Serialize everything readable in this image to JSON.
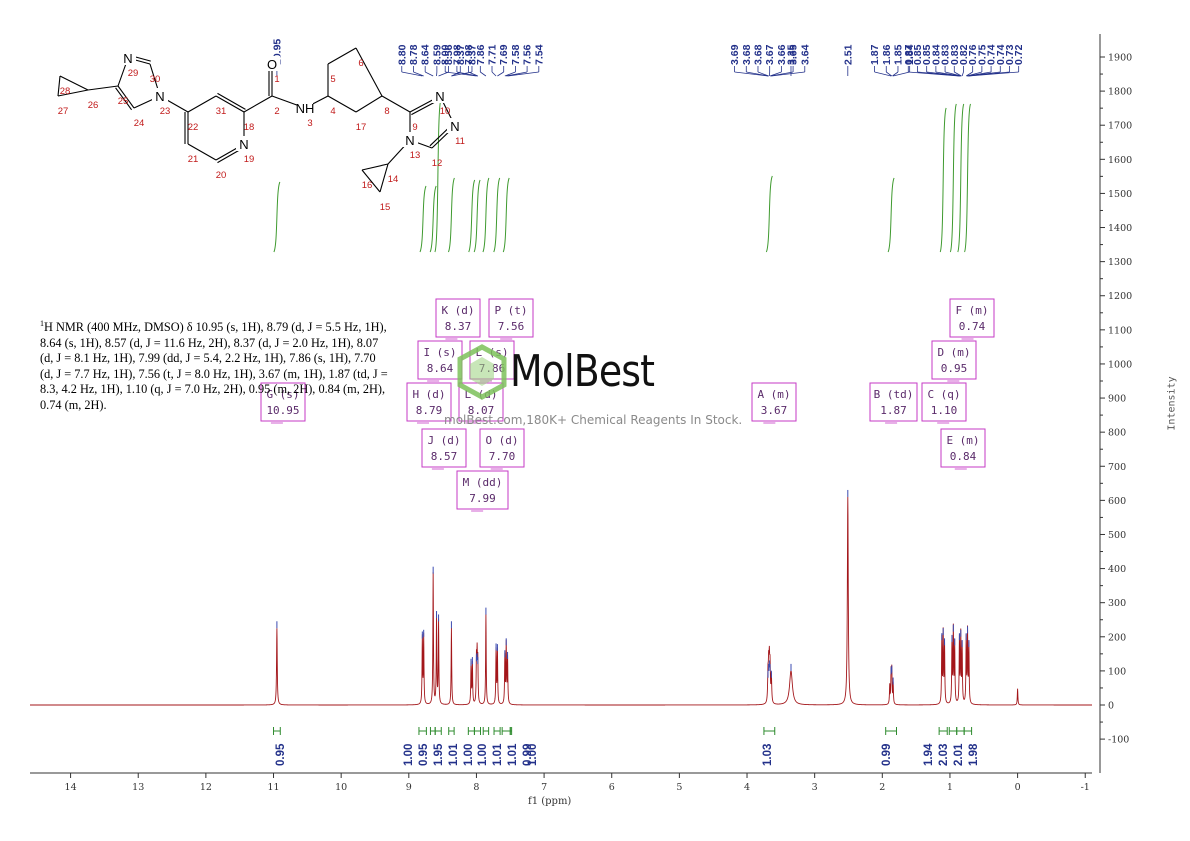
{
  "spectrum_text": {
    "nucleus_sup": "1",
    "body": "H NMR (400 MHz, DMSO) δ 10.95 (s, 1H), 8.79 (d, J = 5.5 Hz, 1H), 8.64 (s, 1H), 8.57 (d, J = 11.6 Hz, 2H), 8.37 (d, J = 2.0 Hz, 1H), 8.07 (d, J = 8.1 Hz, 1H), 7.99 (dd, J = 5.4, 2.2 Hz, 1H), 7.86 (s, 1H), 7.70 (d, J = 7.7 Hz, 1H), 7.56 (t, J = 8.0 Hz, 1H), 3.67 (m, 1H), 1.87 (td, J = 8.3, 4.2 Hz, 1H), 1.10 (q, J = 7.0 Hz, 2H), 0.95 (m, 2H), 0.84 (m, 2H), 0.74 (m, 2H)."
  },
  "watermark": {
    "brand": "MolBest",
    "url": "molBest.com,180K+ Chemical Reagents In Stock."
  },
  "axes": {
    "x_label": "f1 (ppm)",
    "y_label": "Intensity"
  },
  "molecule": {
    "atoms": [
      {
        "label": "O",
        "num": "1"
      },
      {
        "label": "",
        "num": "2"
      },
      {
        "label": "NH",
        "num": "3"
      },
      {
        "label": "",
        "num": "4"
      },
      {
        "label": "",
        "num": "5"
      },
      {
        "label": "",
        "num": "6"
      },
      {
        "label": "",
        "num": "17"
      },
      {
        "label": "",
        "num": "8"
      },
      {
        "label": "",
        "num": "9"
      },
      {
        "label": "N",
        "num": "10"
      },
      {
        "label": "N",
        "num": "11"
      },
      {
        "label": "",
        "num": "12"
      },
      {
        "label": "N",
        "num": "13"
      },
      {
        "label": "",
        "num": "14"
      },
      {
        "label": "",
        "num": "15"
      },
      {
        "label": "",
        "num": "16"
      },
      {
        "label": "",
        "num": "18"
      },
      {
        "label": "N",
        "num": "19"
      },
      {
        "label": "",
        "num": "20"
      },
      {
        "label": "",
        "num": "21"
      },
      {
        "label": "",
        "num": "22"
      },
      {
        "label": "N",
        "num": "23"
      },
      {
        "label": "",
        "num": "24"
      },
      {
        "label": "",
        "num": "25"
      },
      {
        "label": "",
        "num": "26"
      },
      {
        "label": "",
        "num": "27"
      },
      {
        "label": "",
        "num": "28"
      },
      {
        "label": "N",
        "num": "29"
      },
      {
        "label": "",
        "num": "30"
      },
      {
        "label": "",
        "num": "31"
      }
    ]
  },
  "chart_data": {
    "type": "line",
    "xlabel": "f1 (ppm)",
    "ylabel": "Intensity",
    "xlim": [
      14.6,
      -1.1
    ],
    "ylim": [
      -190,
      1990
    ],
    "x_ticks": [
      14,
      13,
      12,
      11,
      10,
      9,
      8,
      7,
      6,
      5,
      4,
      3,
      2,
      1,
      0,
      -1
    ],
    "y_ticks": [
      -100,
      0,
      100,
      200,
      300,
      400,
      500,
      600,
      700,
      800,
      900,
      1000,
      1100,
      1200,
      1300,
      1400,
      1500,
      1600,
      1700,
      1800,
      1900
    ],
    "peaks": [
      {
        "x": 10.95,
        "h": 225,
        "w": 0.006
      },
      {
        "x": 8.8,
        "h": 195,
        "w": 0.005
      },
      {
        "x": 8.78,
        "h": 200,
        "w": 0.005
      },
      {
        "x": 8.64,
        "h": 385,
        "w": 0.005
      },
      {
        "x": 8.59,
        "h": 255,
        "w": 0.005
      },
      {
        "x": 8.56,
        "h": 245,
        "w": 0.005
      },
      {
        "x": 8.37,
        "h": 225,
        "w": 0.005
      },
      {
        "x": 8.08,
        "h": 115,
        "w": 0.005
      },
      {
        "x": 8.06,
        "h": 120,
        "w": 0.005
      },
      {
        "x": 8.0,
        "h": 128,
        "w": 0.005
      },
      {
        "x": 7.99,
        "h": 132,
        "w": 0.005
      },
      {
        "x": 7.98,
        "h": 120,
        "w": 0.005
      },
      {
        "x": 7.86,
        "h": 265,
        "w": 0.005
      },
      {
        "x": 7.71,
        "h": 160,
        "w": 0.005
      },
      {
        "x": 7.69,
        "h": 158,
        "w": 0.005
      },
      {
        "x": 7.58,
        "h": 140,
        "w": 0.005
      },
      {
        "x": 7.56,
        "h": 175,
        "w": 0.005
      },
      {
        "x": 7.54,
        "h": 135,
        "w": 0.005
      },
      {
        "x": 3.69,
        "h": 80,
        "w": 0.006
      },
      {
        "x": 3.68,
        "h": 100,
        "w": 0.006
      },
      {
        "x": 3.67,
        "h": 110,
        "w": 0.006
      },
      {
        "x": 3.66,
        "h": 100,
        "w": 0.006
      },
      {
        "x": 3.64,
        "h": 80,
        "w": 0.006
      },
      {
        "x": 3.35,
        "h": 100,
        "w": 0.025
      },
      {
        "x": 2.51,
        "h": 610,
        "w": 0.008
      },
      {
        "x": 1.89,
        "h": 55,
        "w": 0.005
      },
      {
        "x": 1.87,
        "h": 90,
        "w": 0.005
      },
      {
        "x": 1.86,
        "h": 95,
        "w": 0.005
      },
      {
        "x": 1.84,
        "h": 60,
        "w": 0.005
      },
      {
        "x": 1.12,
        "h": 190,
        "w": 0.005
      },
      {
        "x": 1.1,
        "h": 205,
        "w": 0.005
      },
      {
        "x": 1.08,
        "h": 175,
        "w": 0.005
      },
      {
        "x": 0.97,
        "h": 185,
        "w": 0.005
      },
      {
        "x": 0.95,
        "h": 215,
        "w": 0.005
      },
      {
        "x": 0.93,
        "h": 175,
        "w": 0.005
      },
      {
        "x": 0.86,
        "h": 190,
        "w": 0.005
      },
      {
        "x": 0.84,
        "h": 200,
        "w": 0.005
      },
      {
        "x": 0.82,
        "h": 170,
        "w": 0.005
      },
      {
        "x": 0.76,
        "h": 190,
        "w": 0.005
      },
      {
        "x": 0.74,
        "h": 210,
        "w": 0.005
      },
      {
        "x": 0.72,
        "h": 170,
        "w": 0.005
      },
      {
        "x": 0.0,
        "h": 48,
        "w": 0.005
      }
    ],
    "peak_labels": [
      {
        "group": "a",
        "values": [
          "10.95"
        ]
      },
      {
        "group": "b",
        "values": [
          "8.80",
          "8.78",
          "8.64",
          "8.59",
          "8.56",
          "8.37",
          "8.37"
        ]
      },
      {
        "group": "c",
        "values": [
          "8.00",
          "7.98",
          "7.98",
          "7.86",
          "7.71",
          "7.69",
          "7.58",
          "7.56",
          "7.54"
        ]
      },
      {
        "group": "d",
        "values": [
          "3.69",
          "3.68",
          "3.68",
          "3.67",
          "3.66",
          "3.65",
          "3.64"
        ]
      },
      {
        "group": "e",
        "values": [
          "3.35"
        ]
      },
      {
        "group": "f",
        "values": [
          "2.51"
        ]
      },
      {
        "group": "g",
        "values": [
          "1.87",
          "1.86",
          "1.85",
          "1.84"
        ]
      },
      {
        "group": "h",
        "values": [
          "0.87",
          "0.85",
          "0.85",
          "0.84",
          "0.83",
          "0.83",
          "0.82",
          "0.76",
          "0.75",
          "0.74",
          "0.74",
          "0.73",
          "0.72"
        ]
      }
    ],
    "integrals": [
      {
        "from": 11.0,
        "to": 10.9,
        "value": "0.95"
      },
      {
        "from": 8.85,
        "to": 8.74,
        "value": "1.00"
      },
      {
        "from": 8.68,
        "to": 8.61,
        "value": "0.95"
      },
      {
        "from": 8.61,
        "to": 8.52,
        "value": "1.95"
      },
      {
        "from": 8.41,
        "to": 8.33,
        "value": "1.01"
      },
      {
        "from": 8.12,
        "to": 8.03,
        "value": "1.00"
      },
      {
        "from": 8.03,
        "to": 7.94,
        "value": "1.00"
      },
      {
        "from": 7.9,
        "to": 7.82,
        "value": "1.01"
      },
      {
        "from": 7.74,
        "to": 7.65,
        "value": "1.01"
      },
      {
        "from": 7.62,
        "to": 7.5,
        "value": "0.99"
      },
      {
        "from": 7.5,
        "to": 7.48,
        "value": "1.00"
      },
      {
        "from": 3.75,
        "to": 3.59,
        "value": "1.03"
      },
      {
        "from": 1.95,
        "to": 1.79,
        "value": "0.99"
      },
      {
        "from": 1.16,
        "to": 1.04,
        "value": "1.94"
      },
      {
        "from": 1.01,
        "to": 0.9,
        "value": "2.03"
      },
      {
        "from": 0.9,
        "to": 0.79,
        "value": "2.01"
      },
      {
        "from": 0.79,
        "to": 0.68,
        "value": "1.98"
      }
    ],
    "multiplets": [
      {
        "letter": "K",
        "mult": "d",
        "value": "8.37"
      },
      {
        "letter": "P",
        "mult": "t",
        "value": "7.56"
      },
      {
        "letter": "I",
        "mult": "s",
        "value": "8.64"
      },
      {
        "letter": "L",
        "mult": "s",
        "value": "7.86"
      },
      {
        "letter": "H",
        "mult": "d",
        "value": "8.79"
      },
      {
        "letter": "L",
        "mult": "d",
        "value": "8.07"
      },
      {
        "letter": "J",
        "mult": "d",
        "value": "8.57"
      },
      {
        "letter": "O",
        "mult": "d",
        "value": "7.70"
      },
      {
        "letter": "M",
        "mult": "dd",
        "value": "7.99"
      },
      {
        "letter": "G",
        "mult": "s",
        "value": "10.95"
      },
      {
        "letter": "A",
        "mult": "m",
        "value": "3.67"
      },
      {
        "letter": "B",
        "mult": "td",
        "value": "1.87"
      },
      {
        "letter": "C",
        "mult": "q",
        "value": "1.10"
      },
      {
        "letter": "D",
        "mult": "m",
        "value": "0.95"
      },
      {
        "letter": "E",
        "mult": "m",
        "value": "0.84"
      },
      {
        "letter": "F",
        "mult": "m",
        "value": "0.74"
      }
    ]
  }
}
